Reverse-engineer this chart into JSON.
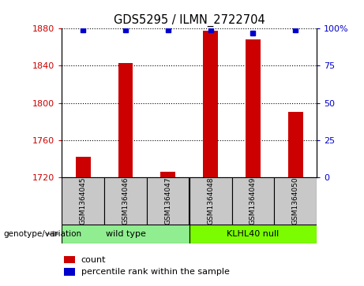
{
  "title": "GDS5295 / ILMN_2722704",
  "samples": [
    "GSM1364045",
    "GSM1364046",
    "GSM1364047",
    "GSM1364048",
    "GSM1364049",
    "GSM1364050"
  ],
  "counts": [
    1742,
    1843,
    1726,
    1878,
    1868,
    1790
  ],
  "percentile_ranks": [
    99,
    99,
    99,
    99,
    97,
    99
  ],
  "group_labels": [
    "wild type",
    "KLHL40 null"
  ],
  "group_colors": [
    "#90EE90",
    "#7CFC00"
  ],
  "ylim_left": [
    1720,
    1880
  ],
  "yticks_left": [
    1720,
    1760,
    1800,
    1840,
    1880
  ],
  "ylim_right": [
    0,
    100
  ],
  "yticks_right": [
    0,
    25,
    50,
    75,
    100
  ],
  "bar_color": "#CC0000",
  "dot_color": "#0000CC",
  "bar_width": 0.35,
  "bg_color": "#FFFFFF",
  "sample_box_color": "#C8C8C8",
  "left_tick_color": "#CC0000",
  "right_tick_color": "#0000CC",
  "genotype_label": "genotype/variation",
  "legend_count_label": "count",
  "legend_pct_label": "percentile rank within the sample"
}
